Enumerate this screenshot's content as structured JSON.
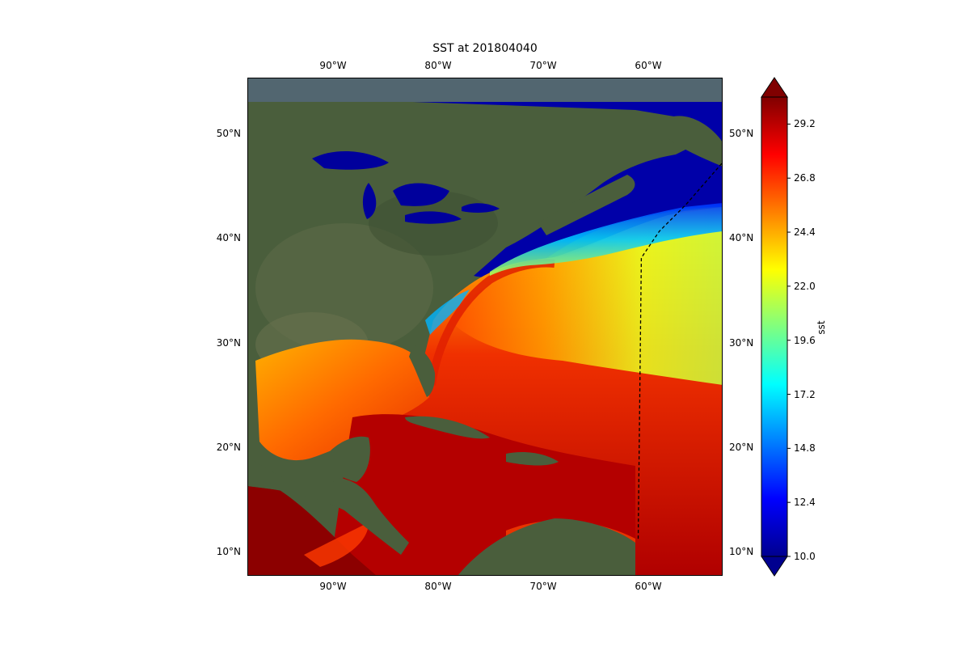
{
  "title": "SST at 201804040",
  "map": {
    "lon_range": [
      -98.5,
      -53.5
    ],
    "lat_range": [
      8,
      55
    ],
    "lon_ticks": [
      "90°W",
      "80°W",
      "70°W",
      "60°W"
    ],
    "lon_tick_values": [
      -90,
      -80,
      -70,
      -60
    ],
    "lat_ticks": [
      "10°N",
      "20°N",
      "30°N",
      "40°N",
      "50°N"
    ],
    "lat_tick_values": [
      10,
      20,
      30,
      40,
      50
    ],
    "basemap": "satellite-imagery",
    "overlay": "sea-surface-temperature",
    "track_line": {
      "style": "dashed",
      "color": "#000000",
      "points": [
        [
          -61.5,
          11.5
        ],
        [
          -61.2,
          38
        ],
        [
          -59.5,
          40.5
        ],
        [
          -57,
          43
        ],
        [
          -53.5,
          47
        ]
      ]
    }
  },
  "colorbar": {
    "label": "sst",
    "min": 10.0,
    "max": 30.4,
    "tick_labels": [
      "10.0",
      "12.4",
      "14.8",
      "17.2",
      "19.6",
      "22.0",
      "24.4",
      "26.8",
      "29.2"
    ],
    "tick_values": [
      10.0,
      12.4,
      14.8,
      17.2,
      19.6,
      22.0,
      24.4,
      26.8,
      29.2
    ],
    "colormap": "jet",
    "extend": "both"
  },
  "colors": {
    "land": "#4a5e3c",
    "cold_water": "#00009c",
    "hot_water": "#8c0000"
  }
}
